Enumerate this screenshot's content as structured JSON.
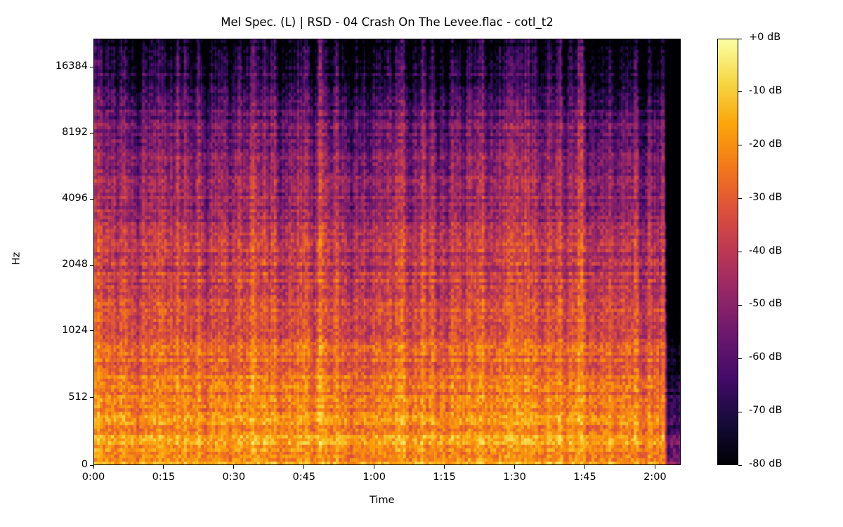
{
  "chart_data": {
    "type": "heatmap",
    "title": "Mel Spec. (L) | RSD - 04 Crash On The Levee.flac - cotl_t2",
    "xlabel": "Time",
    "ylabel": "Hz",
    "x_ticks": [
      {
        "label": "0:00",
        "value": 0
      },
      {
        "label": "0:15",
        "value": 15
      },
      {
        "label": "0:30",
        "value": 30
      },
      {
        "label": "0:45",
        "value": 45
      },
      {
        "label": "1:00",
        "value": 60
      },
      {
        "label": "1:15",
        "value": 75
      },
      {
        "label": "1:30",
        "value": 90
      },
      {
        "label": "1:45",
        "value": 105
      },
      {
        "label": "2:00",
        "value": 120
      }
    ],
    "xlim": [
      0,
      125.5
    ],
    "y_scale": "symlog-base2",
    "y_ticks": [
      {
        "label": "0",
        "value": 0
      },
      {
        "label": "512",
        "value": 512
      },
      {
        "label": "1024",
        "value": 1024
      },
      {
        "label": "2048",
        "value": 2048
      },
      {
        "label": "4096",
        "value": 4096
      },
      {
        "label": "8192",
        "value": 8192
      },
      {
        "label": "16384",
        "value": 16384
      }
    ],
    "ylim": [
      0,
      22050
    ],
    "colormap": "inferno",
    "colorbar": {
      "range": [
        -80,
        0
      ],
      "ticks": [
        {
          "label": "+0 dB",
          "value": 0
        },
        {
          "label": "-10 dB",
          "value": -10
        },
        {
          "label": "-20 dB",
          "value": -20
        },
        {
          "label": "-30 dB",
          "value": -30
        },
        {
          "label": "-40 dB",
          "value": -40
        },
        {
          "label": "-50 dB",
          "value": -50
        },
        {
          "label": "-60 dB",
          "value": -60
        },
        {
          "label": "-70 dB",
          "value": -70
        },
        {
          "label": "-80 dB",
          "value": -80
        }
      ]
    },
    "signal_end_seconds": 122
  }
}
